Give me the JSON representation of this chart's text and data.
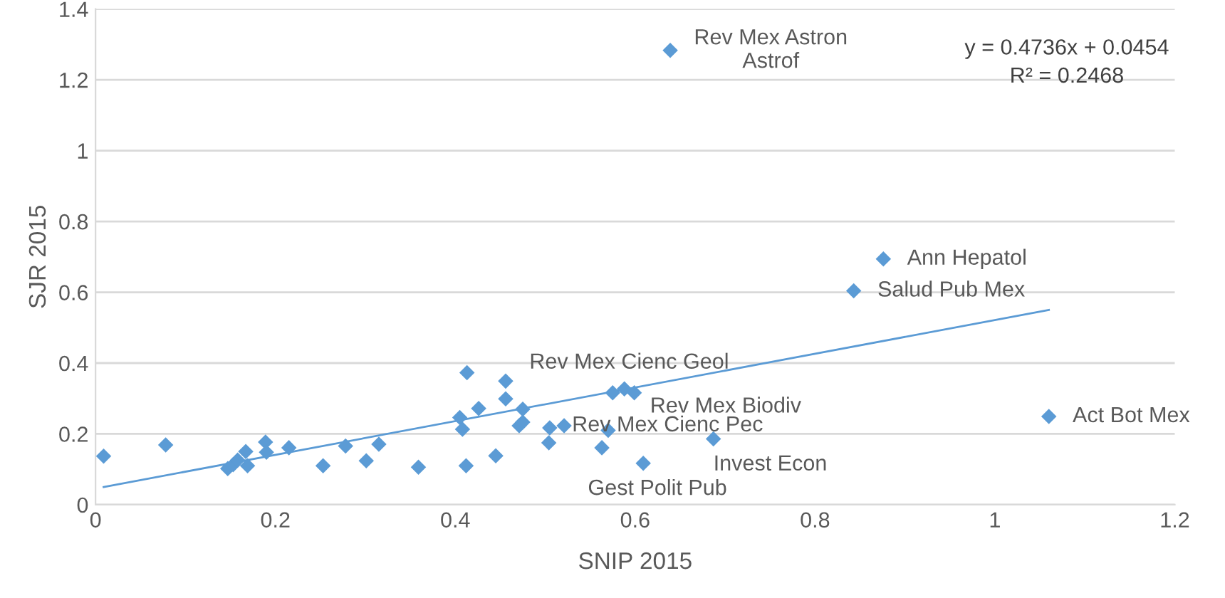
{
  "chart_data": {
    "type": "scatter",
    "xlabel": "SNIP 2015",
    "ylabel": "SJR 2015",
    "xlim": [
      0,
      1.2
    ],
    "xticks": [
      0,
      0.2,
      0.4,
      0.6,
      0.8,
      1,
      1.2
    ],
    "ylim": [
      0,
      1.4
    ],
    "yticks": [
      0,
      0.2,
      0.4,
      0.6,
      0.8,
      1,
      1.2,
      1.4
    ],
    "grid": "y",
    "legend": false,
    "series": [
      {
        "marker": "diamond",
        "color": "#5b9bd5",
        "x": [
          0.009,
          0.078,
          0.147,
          0.153,
          0.158,
          0.167,
          0.169,
          0.189,
          0.19,
          0.215,
          0.253,
          0.278,
          0.301,
          0.315,
          0.359,
          0.405,
          0.408,
          0.413,
          0.412,
          0.426,
          0.445,
          0.456,
          0.456,
          0.475,
          0.471,
          0.475,
          0.505,
          0.504,
          0.521,
          0.563,
          0.57,
          0.575,
          0.588,
          0.599,
          0.609,
          0.687,
          0.639,
          0.876,
          0.843,
          1.06
        ],
        "values": [
          0.137,
          0.169,
          0.102,
          0.113,
          0.126,
          0.15,
          0.11,
          0.177,
          0.148,
          0.161,
          0.11,
          0.166,
          0.124,
          0.171,
          0.106,
          0.246,
          0.213,
          0.373,
          0.11,
          0.272,
          0.138,
          0.349,
          0.299,
          0.27,
          0.223,
          0.233,
          0.217,
          0.175,
          0.223,
          0.161,
          0.21,
          0.316,
          0.327,
          0.316,
          0.117,
          0.186,
          1.283,
          0.694,
          0.604,
          0.249
        ]
      },
      {
        "type": "line",
        "marker": "none",
        "color": "#5b9bd5",
        "x": [
          0.009,
          1.06
        ],
        "values": [
          0.05,
          0.55
        ]
      }
    ],
    "annotations": [
      {
        "text": "Rev Mex Astron\nAstrof",
        "x": 0.639,
        "y": 1.283
      },
      {
        "text": "Ann Hepatol",
        "x": 0.876,
        "y": 0.694
      },
      {
        "text": "Salud Pub Mex",
        "x": 0.843,
        "y": 0.604
      },
      {
        "text": "Act Bot Mex",
        "x": 1.06,
        "y": 0.249
      },
      {
        "text": "Rev Mex Cienc Geol",
        "x": 0.588,
        "y": 0.327
      },
      {
        "text": "Rev Mex Biodiv",
        "x": 0.599,
        "y": 0.316
      },
      {
        "text": "Rev Mex Cienc Pec",
        "x": 0.521,
        "y": 0.223
      },
      {
        "text": "Invest Econ",
        "x": 0.687,
        "y": 0.186
      },
      {
        "text": "Gest Polit Pub",
        "x": 0.609,
        "y": 0.117
      },
      "y = 0.4736x + 0.0454\nR² = 0.2468"
    ]
  }
}
